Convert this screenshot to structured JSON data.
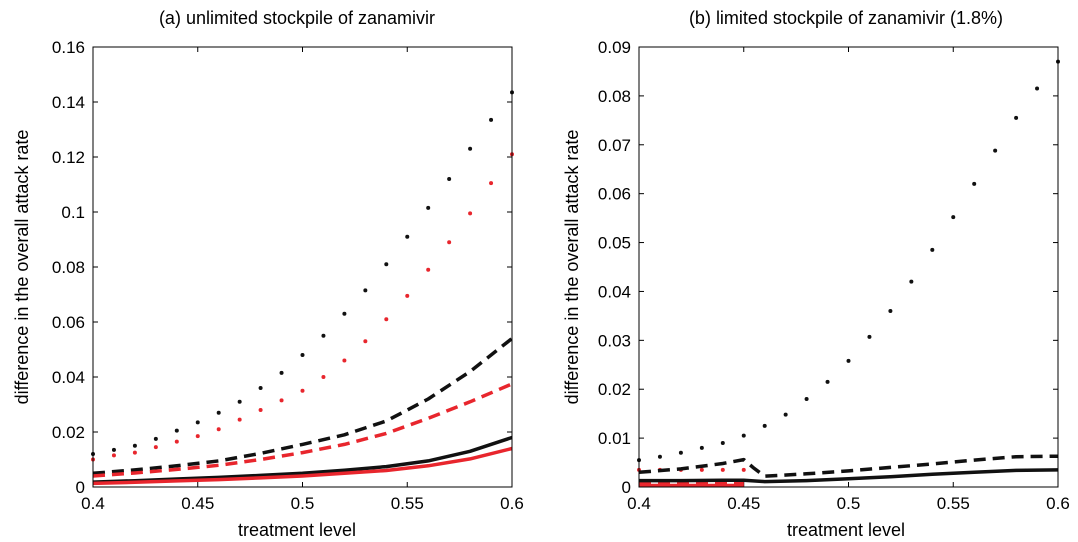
{
  "chart_data": [
    {
      "type": "line",
      "title": "(a) unlimited stockpile of zanamivir",
      "xlabel": "treatment level",
      "ylabel": "difference in the overall attack rate",
      "xlim": [
        0.4,
        0.6
      ],
      "ylim": [
        0,
        0.16
      ],
      "xticks": [
        0.4,
        0.45,
        0.5,
        0.55,
        0.6
      ],
      "xtick_labels": [
        "0.4",
        "0.45",
        "0.5",
        "0.55",
        "0.6"
      ],
      "yticks": [
        0,
        0.02,
        0.04,
        0.06,
        0.08,
        0.1,
        0.12,
        0.14,
        0.16
      ],
      "ytick_labels": [
        "0",
        "0.02",
        "0.04",
        "0.06",
        "0.08",
        "0.1",
        "0.12",
        "0.14",
        "0.16"
      ],
      "grid": false,
      "series": [
        {
          "style": "dotted",
          "color": "#111111",
          "x": [
            0.4,
            0.41,
            0.42,
            0.43,
            0.44,
            0.45,
            0.46,
            0.47,
            0.48,
            0.49,
            0.5,
            0.51,
            0.52,
            0.53,
            0.54,
            0.55,
            0.56,
            0.57,
            0.58,
            0.59,
            0.6
          ],
          "y": [
            0.012,
            0.0135,
            0.015,
            0.0175,
            0.0205,
            0.0235,
            0.027,
            0.031,
            0.036,
            0.0415,
            0.048,
            0.055,
            0.063,
            0.0715,
            0.081,
            0.091,
            0.1015,
            0.112,
            0.123,
            0.1335,
            0.1435
          ]
        },
        {
          "style": "dotted",
          "color": "#e8262d",
          "x": [
            0.4,
            0.41,
            0.42,
            0.43,
            0.44,
            0.45,
            0.46,
            0.47,
            0.48,
            0.49,
            0.5,
            0.51,
            0.52,
            0.53,
            0.54,
            0.55,
            0.56,
            0.57,
            0.58,
            0.59,
            0.6
          ],
          "y": [
            0.01,
            0.0115,
            0.0125,
            0.0145,
            0.0165,
            0.0185,
            0.021,
            0.0245,
            0.028,
            0.0315,
            0.035,
            0.04,
            0.046,
            0.053,
            0.061,
            0.0695,
            0.079,
            0.089,
            0.0995,
            0.1105,
            0.121
          ]
        },
        {
          "style": "dashed",
          "color": "#111111",
          "x": [
            0.4,
            0.42,
            0.44,
            0.46,
            0.48,
            0.5,
            0.52,
            0.54,
            0.56,
            0.58,
            0.6
          ],
          "y": [
            0.005,
            0.0062,
            0.0077,
            0.0095,
            0.0122,
            0.0155,
            0.019,
            0.024,
            0.032,
            0.042,
            0.054
          ]
        },
        {
          "style": "dashed",
          "color": "#e8262d",
          "x": [
            0.4,
            0.42,
            0.44,
            0.46,
            0.48,
            0.5,
            0.52,
            0.54,
            0.56,
            0.58,
            0.6
          ],
          "y": [
            0.004,
            0.0051,
            0.0064,
            0.0079,
            0.01,
            0.0125,
            0.0155,
            0.0195,
            0.025,
            0.031,
            0.0375
          ]
        },
        {
          "style": "solid",
          "color": "#111111",
          "x": [
            0.4,
            0.42,
            0.44,
            0.46,
            0.48,
            0.5,
            0.52,
            0.54,
            0.56,
            0.58,
            0.6
          ],
          "y": [
            0.0018,
            0.0023,
            0.0029,
            0.0035,
            0.0042,
            0.005,
            0.0061,
            0.0074,
            0.0095,
            0.013,
            0.018
          ]
        },
        {
          "style": "solid",
          "color": "#e8262d",
          "x": [
            0.4,
            0.42,
            0.44,
            0.46,
            0.48,
            0.5,
            0.52,
            0.54,
            0.56,
            0.58,
            0.6
          ],
          "y": [
            0.0013,
            0.0017,
            0.0022,
            0.0027,
            0.0033,
            0.004,
            0.005,
            0.006,
            0.0077,
            0.0102,
            0.014
          ]
        }
      ]
    },
    {
      "type": "line",
      "title": "(b) limited stockpile of zanamivir (1.8%)",
      "xlabel": "treatment level",
      "ylabel": "difference in the overall attack rate",
      "xlim": [
        0.4,
        0.6
      ],
      "ylim": [
        0,
        0.09
      ],
      "xticks": [
        0.4,
        0.45,
        0.5,
        0.55,
        0.6
      ],
      "xtick_labels": [
        "0.4",
        "0.45",
        "0.5",
        "0.55",
        "0.6"
      ],
      "yticks": [
        0,
        0.01,
        0.02,
        0.03,
        0.04,
        0.05,
        0.06,
        0.07,
        0.08,
        0.09
      ],
      "ytick_labels": [
        "0",
        "0.01",
        "0.02",
        "0.03",
        "0.04",
        "0.05",
        "0.06",
        "0.07",
        "0.08",
        "0.09"
      ],
      "grid": false,
      "series": [
        {
          "style": "dotted",
          "color": "#111111",
          "x": [
            0.4,
            0.41,
            0.42,
            0.43,
            0.44,
            0.45,
            0.46,
            0.47,
            0.48,
            0.49,
            0.5,
            0.51,
            0.52,
            0.53,
            0.54,
            0.55,
            0.56,
            0.57,
            0.58,
            0.59,
            0.6
          ],
          "y": [
            0.0055,
            0.0062,
            0.007,
            0.008,
            0.009,
            0.0105,
            0.0125,
            0.0148,
            0.018,
            0.0215,
            0.0258,
            0.0307,
            0.036,
            0.042,
            0.0485,
            0.0552,
            0.062,
            0.0688,
            0.0755,
            0.0815,
            0.087
          ]
        },
        {
          "style": "dotted",
          "color": "#e8262d",
          "x": [
            0.4,
            0.41,
            0.42,
            0.43,
            0.44,
            0.45
          ],
          "y": [
            0.0035,
            0.0035,
            0.0035,
            0.0035,
            0.0035,
            0.0035
          ]
        },
        {
          "style": "dashed",
          "color": "#111111",
          "x": [
            0.4,
            0.42,
            0.44,
            0.45,
            0.455,
            0.46,
            0.48,
            0.5,
            0.52,
            0.54,
            0.56,
            0.58,
            0.6
          ],
          "y": [
            0.003,
            0.0037,
            0.0048,
            0.0056,
            0.0038,
            0.0022,
            0.0027,
            0.0033,
            0.004,
            0.0047,
            0.0055,
            0.0062,
            0.0063
          ]
        },
        {
          "style": "dashed",
          "color": "#e8262d",
          "x": [
            0.4,
            0.45
          ],
          "y": [
            0.0009,
            0.0009
          ]
        },
        {
          "style": "solid",
          "color": "#111111",
          "x": [
            0.4,
            0.42,
            0.44,
            0.45,
            0.46,
            0.48,
            0.5,
            0.52,
            0.54,
            0.56,
            0.58,
            0.6
          ],
          "y": [
            0.0013,
            0.0013,
            0.0014,
            0.0014,
            0.0011,
            0.0013,
            0.0017,
            0.0021,
            0.0026,
            0.003,
            0.0034,
            0.0035
          ]
        },
        {
          "style": "solid",
          "color": "#e8262d",
          "x": [
            0.4,
            0.45
          ],
          "y": [
            0.0003,
            0.0003
          ]
        }
      ]
    }
  ]
}
